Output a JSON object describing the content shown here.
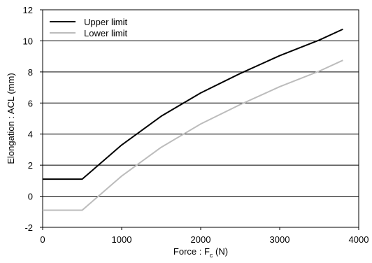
{
  "chart_data": {
    "type": "line",
    "title": "",
    "xlabel": {
      "main": "Force : F",
      "sub": "c",
      "unit": " (N)"
    },
    "ylabel": "Elongation : ACL (mm)",
    "xlim": [
      0,
      4000
    ],
    "ylim": [
      -2,
      12
    ],
    "xticks": [
      0,
      1000,
      2000,
      3000,
      4000
    ],
    "yticks": [
      -2,
      0,
      2,
      4,
      6,
      8,
      10,
      12
    ],
    "grid": "horizontal",
    "legend_position": "top-left",
    "series": [
      {
        "name": "Upper limit",
        "color": "#000000",
        "x": [
          0,
          500,
          1000,
          1500,
          2000,
          2500,
          3000,
          3500,
          3800
        ],
        "y": [
          1.1,
          1.1,
          3.3,
          5.15,
          6.65,
          7.9,
          9.05,
          10.05,
          10.75
        ]
      },
      {
        "name": "Lower limit",
        "color": "#bcbcbc",
        "x": [
          0,
          500,
          1000,
          1500,
          2000,
          2500,
          3000,
          3500,
          3800
        ],
        "y": [
          -0.9,
          -0.9,
          1.3,
          3.15,
          4.65,
          5.9,
          7.05,
          8.05,
          8.75
        ]
      }
    ]
  }
}
